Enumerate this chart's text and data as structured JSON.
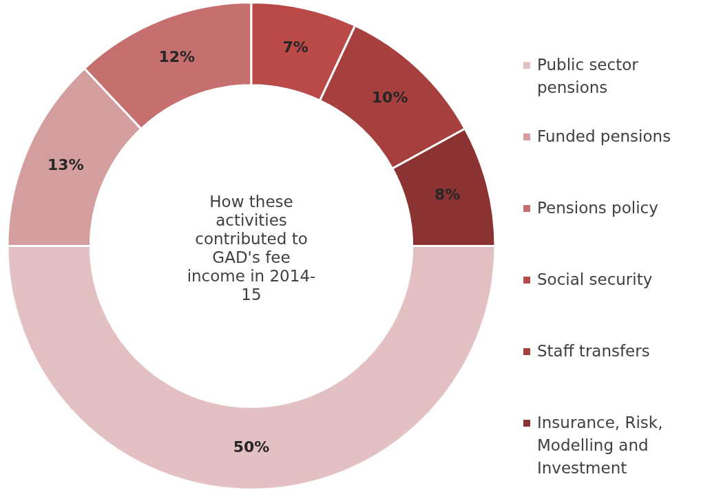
{
  "chart_data": {
    "type": "donut",
    "title": "How these activities contributed to GAD's fee income in 2014-15",
    "categories": [
      "Public sector pensions",
      "Funded pensions",
      "Pensions policy",
      "Social security",
      "Staff transfers",
      "Insurance, Risk, Modelling and Investment"
    ],
    "values": [
      50,
      13,
      12,
      7,
      10,
      8
    ],
    "value_labels": [
      "50%",
      "13%",
      "12%",
      "7%",
      "10%",
      "8%"
    ],
    "colors": [
      "#e3c1c2",
      "#d49e9f",
      "#c66f6f",
      "#b94a48",
      "#a5403e",
      "#8b3332"
    ],
    "legend": "right"
  }
}
